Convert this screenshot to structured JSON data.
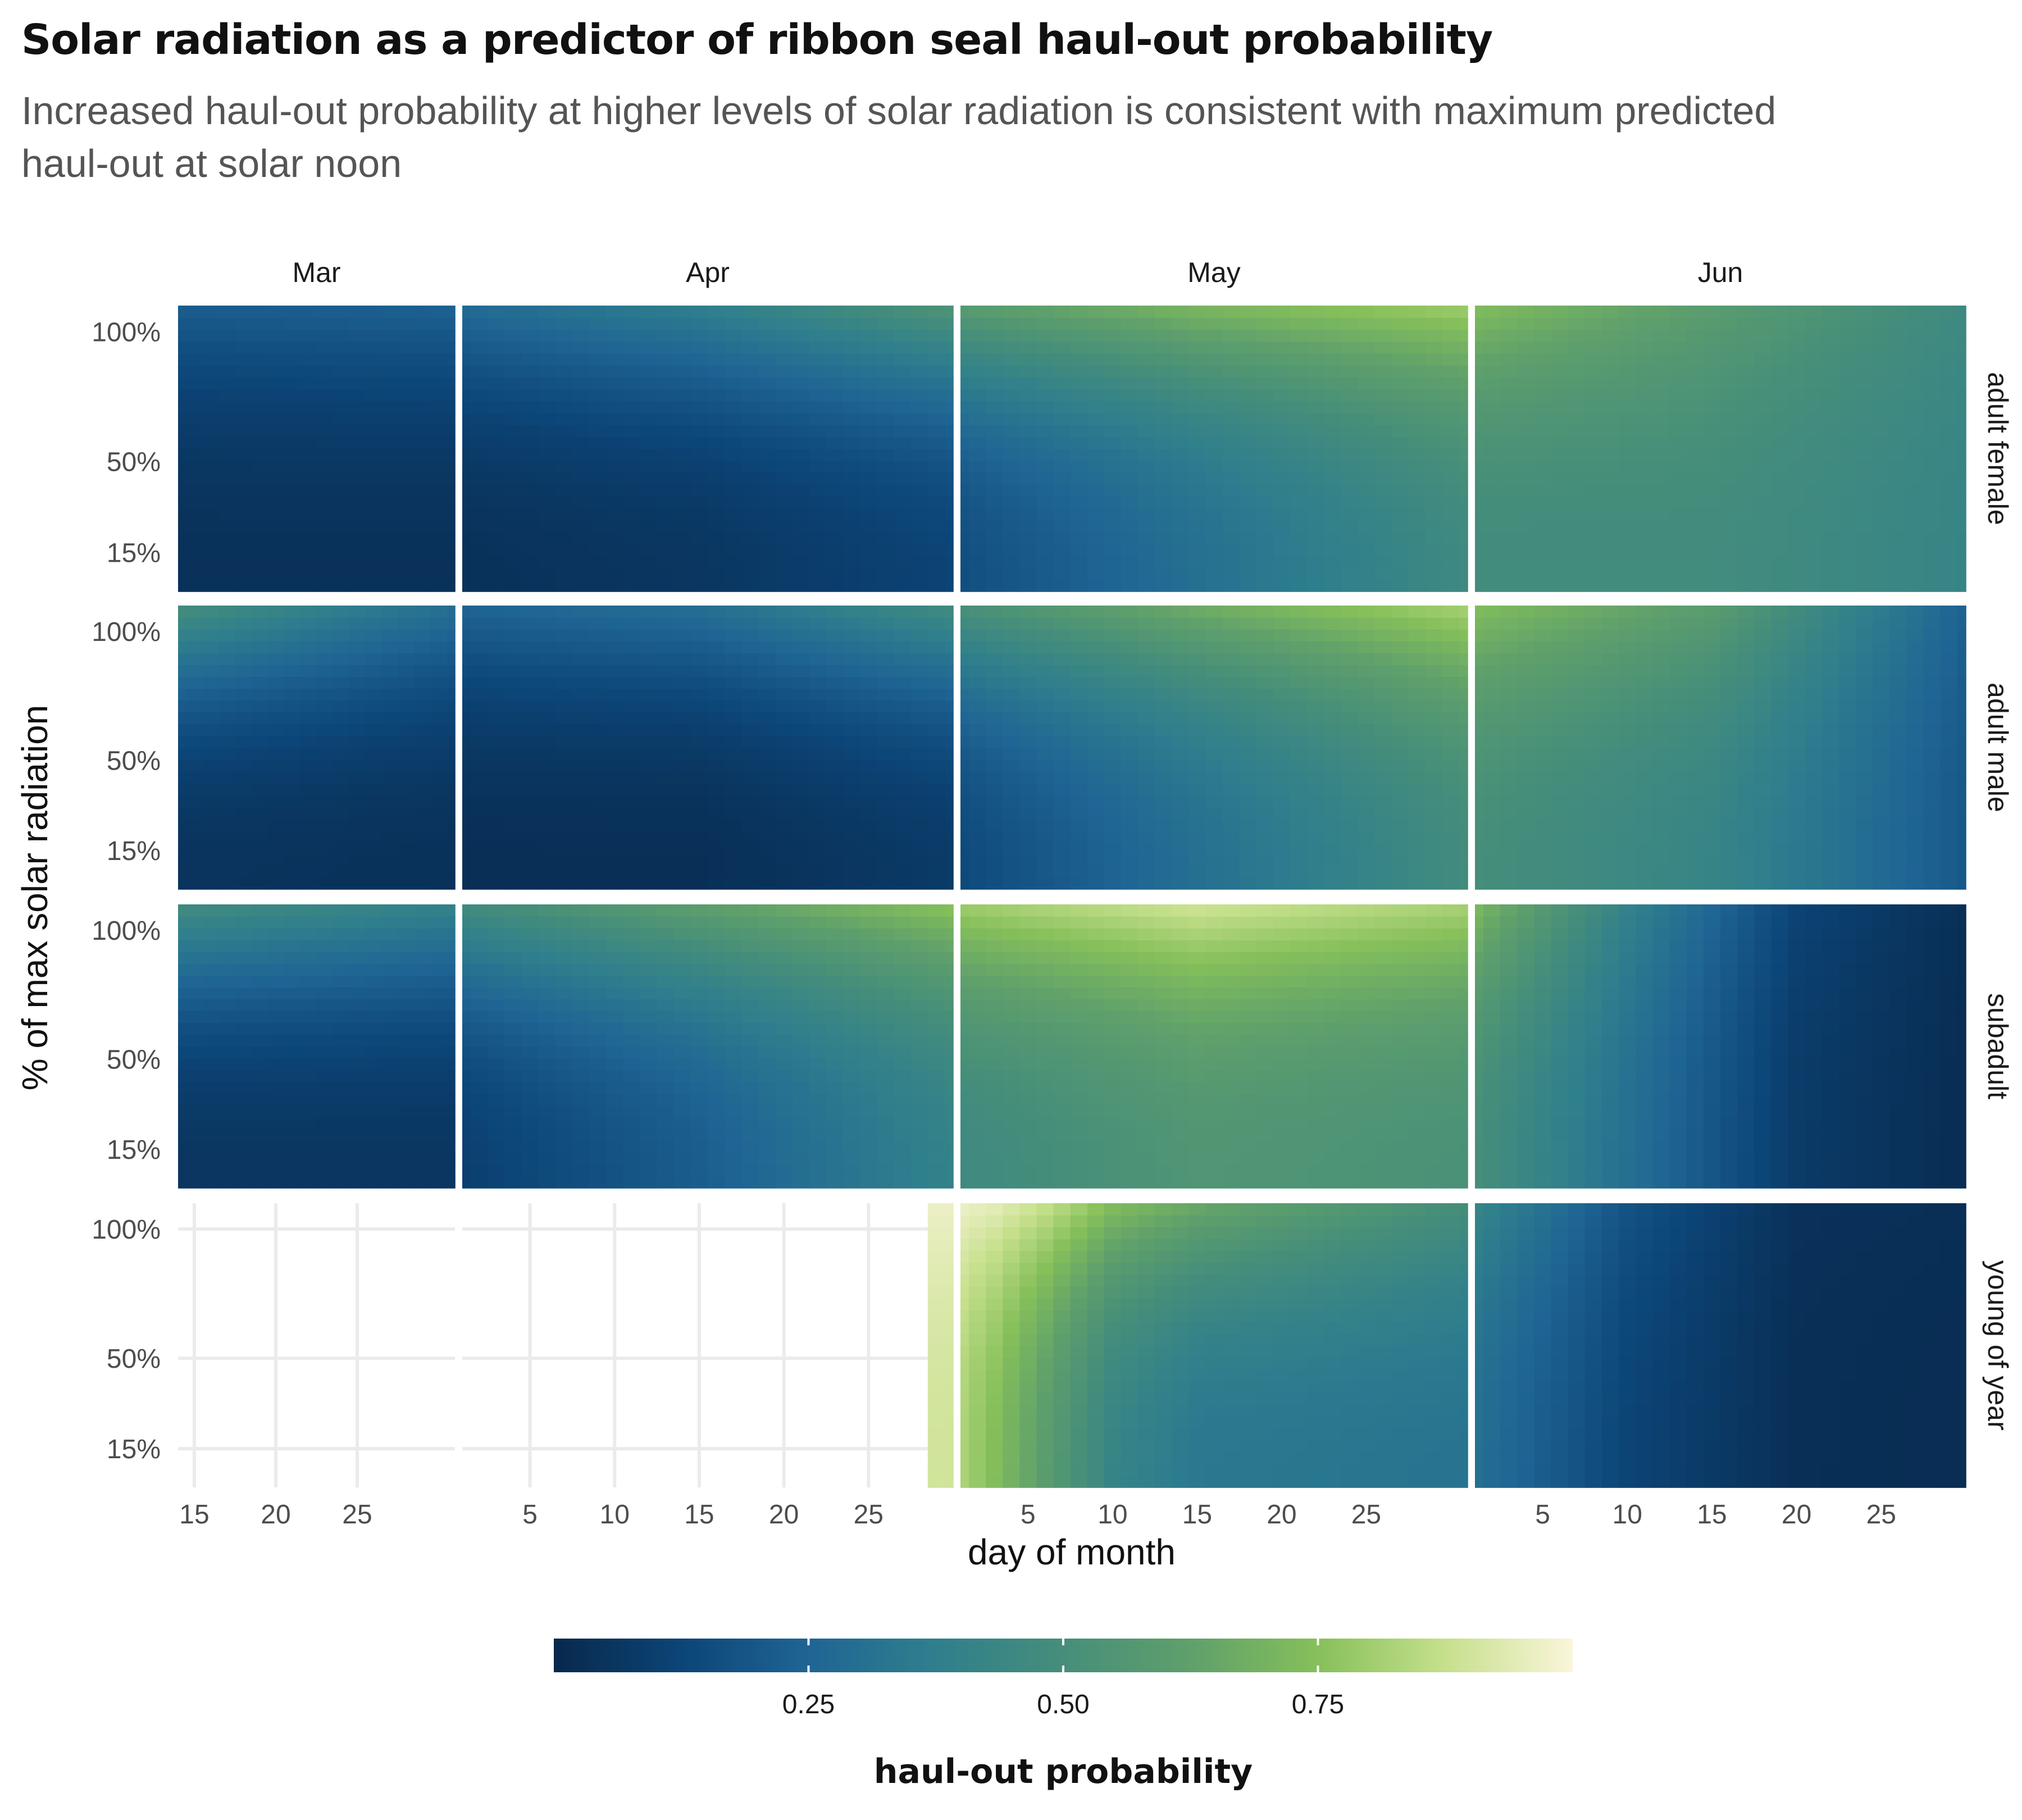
{
  "title": "Solar radiation as a predictor of ribbon seal haul-out probability",
  "subtitle": "Increased haul-out probability at higher levels of solar radiation is consistent with maximum predicted haul-out at solar noon",
  "colors": {
    "palette": [
      "#08284c",
      "#0c4577",
      "#1f6594",
      "#2f7f8d",
      "#468e7a",
      "#5fa06b",
      "#86c05a",
      "#c6e08c",
      "#faf5da"
    ],
    "panel_separator": "#ffffff",
    "empty_grid": "#ebebeb"
  },
  "chart_data": {
    "type": "heatmap",
    "x_axis": {
      "label": "day of month",
      "facets": [
        {
          "month": "Mar",
          "range": [
            14,
            31
          ],
          "ticks": [
            "15",
            "20",
            "25"
          ]
        },
        {
          "month": "Apr",
          "range": [
            1,
            30
          ],
          "ticks": [
            "5",
            "10",
            "15",
            "20",
            "25"
          ]
        },
        {
          "month": "May",
          "range": [
            1,
            31
          ],
          "ticks": [
            "5",
            "10",
            "15",
            "20",
            "25"
          ]
        },
        {
          "month": "Jun",
          "range": [
            1,
            30
          ],
          "ticks": [
            "5",
            "10",
            "15",
            "20",
            "25"
          ]
        }
      ]
    },
    "y_axis": {
      "label": "% of max solar radiation",
      "ticks": [
        "100%",
        "50%",
        "15%"
      ],
      "tick_positions_pct": [
        100,
        50,
        15
      ]
    },
    "rows": [
      {
        "name": "adult female",
        "anchors": [
          {
            "month": "Mar",
            "day": 14,
            "low": 0.04,
            "high": 0.22
          },
          {
            "month": "Mar",
            "day": 31,
            "low": 0.04,
            "high": 0.24
          },
          {
            "month": "Apr",
            "day": 1,
            "low": 0.04,
            "high": 0.28
          },
          {
            "month": "Apr",
            "day": 15,
            "low": 0.06,
            "high": 0.38
          },
          {
            "month": "Apr",
            "day": 30,
            "low": 0.12,
            "high": 0.55
          },
          {
            "month": "May",
            "day": 1,
            "low": 0.16,
            "high": 0.6
          },
          {
            "month": "May",
            "day": 15,
            "low": 0.3,
            "high": 0.72
          },
          {
            "month": "May",
            "day": 31,
            "low": 0.46,
            "high": 0.8
          },
          {
            "month": "Jun",
            "day": 1,
            "low": 0.48,
            "high": 0.74
          },
          {
            "month": "Jun",
            "day": 15,
            "low": 0.48,
            "high": 0.6
          },
          {
            "month": "Jun",
            "day": 30,
            "low": 0.42,
            "high": 0.46
          }
        ]
      },
      {
        "name": "adult male",
        "anchors": [
          {
            "month": "Mar",
            "day": 14,
            "low": 0.05,
            "high": 0.5
          },
          {
            "month": "Mar",
            "day": 31,
            "low": 0.04,
            "high": 0.3
          },
          {
            "month": "Apr",
            "day": 1,
            "low": 0.03,
            "high": 0.25
          },
          {
            "month": "Apr",
            "day": 15,
            "low": 0.03,
            "high": 0.3
          },
          {
            "month": "Apr",
            "day": 30,
            "low": 0.08,
            "high": 0.48
          },
          {
            "month": "May",
            "day": 1,
            "low": 0.14,
            "high": 0.52
          },
          {
            "month": "May",
            "day": 15,
            "low": 0.3,
            "high": 0.68
          },
          {
            "month": "May",
            "day": 31,
            "low": 0.48,
            "high": 0.82
          },
          {
            "month": "Jun",
            "day": 1,
            "low": 0.5,
            "high": 0.74
          },
          {
            "month": "Jun",
            "day": 15,
            "low": 0.42,
            "high": 0.6
          },
          {
            "month": "Jun",
            "day": 30,
            "low": 0.2,
            "high": 0.24
          }
        ]
      },
      {
        "name": "subadult",
        "anchors": [
          {
            "month": "Mar",
            "day": 14,
            "low": 0.06,
            "high": 0.48
          },
          {
            "month": "Mar",
            "day": 31,
            "low": 0.06,
            "high": 0.4
          },
          {
            "month": "Apr",
            "day": 1,
            "low": 0.1,
            "high": 0.48
          },
          {
            "month": "Apr",
            "day": 15,
            "low": 0.22,
            "high": 0.62
          },
          {
            "month": "Apr",
            "day": 30,
            "low": 0.4,
            "high": 0.76
          },
          {
            "month": "May",
            "day": 1,
            "low": 0.46,
            "high": 0.8
          },
          {
            "month": "May",
            "day": 15,
            "low": 0.55,
            "high": 0.9
          },
          {
            "month": "May",
            "day": 31,
            "low": 0.52,
            "high": 0.82
          },
          {
            "month": "Jun",
            "day": 1,
            "low": 0.5,
            "high": 0.72
          },
          {
            "month": "Jun",
            "day": 10,
            "low": 0.3,
            "high": 0.4
          },
          {
            "month": "Jun",
            "day": 20,
            "low": 0.08,
            "high": 0.12
          },
          {
            "month": "Jun",
            "day": 30,
            "low": 0.02,
            "high": 0.03
          }
        ]
      },
      {
        "name": "young of year",
        "start": {
          "month": "Apr",
          "day": 29
        },
        "anchors": [
          {
            "month": "Apr",
            "day": 29,
            "low": 0.9,
            "high": 0.97
          },
          {
            "month": "May",
            "day": 1,
            "low": 0.82,
            "high": 0.97
          },
          {
            "month": "May",
            "day": 3,
            "low": 0.74,
            "high": 0.95
          },
          {
            "month": "May",
            "day": 6,
            "low": 0.6,
            "high": 0.88
          },
          {
            "month": "May",
            "day": 10,
            "low": 0.42,
            "high": 0.74
          },
          {
            "month": "May",
            "day": 15,
            "low": 0.34,
            "high": 0.66
          },
          {
            "month": "May",
            "day": 31,
            "low": 0.32,
            "high": 0.5
          },
          {
            "month": "Jun",
            "day": 1,
            "low": 0.3,
            "high": 0.42
          },
          {
            "month": "Jun",
            "day": 10,
            "low": 0.12,
            "high": 0.18
          },
          {
            "month": "Jun",
            "day": 20,
            "low": 0.03,
            "high": 0.04
          },
          {
            "month": "Jun",
            "day": 30,
            "low": 0.02,
            "high": 0.03
          }
        ]
      }
    ],
    "legend": {
      "title": "haul-out probability",
      "range": [
        0,
        1
      ],
      "ticks": [
        "0.25",
        "0.50",
        "0.75"
      ],
      "tick_values": [
        0.25,
        0.5,
        0.75
      ],
      "placement": "bottom"
    },
    "grid": true
  }
}
